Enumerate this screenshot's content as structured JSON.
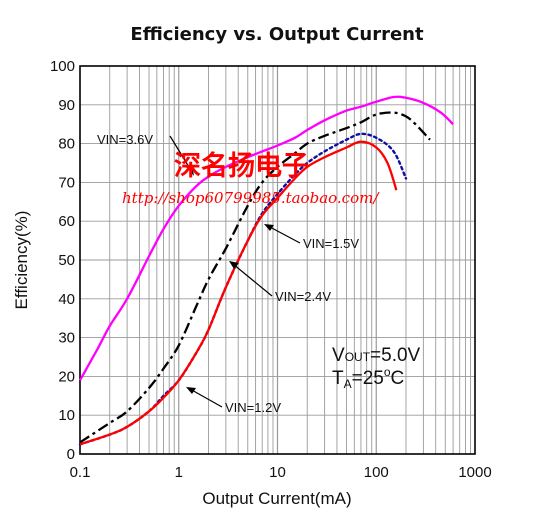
{
  "chart_data": {
    "type": "line",
    "title": "Efficiency vs. Output Current",
    "xlabel": "Output Current(mA)",
    "ylabel": "Efficiency(%)",
    "xscale": "log",
    "xlim": [
      0.1,
      1000
    ],
    "ylim": [
      0,
      100
    ],
    "grid": true,
    "x_tick_labels": [
      "0.1",
      "1",
      "10",
      "100",
      "1000"
    ],
    "y_tick_labels": [
      "0",
      "10",
      "20",
      "30",
      "40",
      "50",
      "60",
      "70",
      "80",
      "90",
      "100"
    ],
    "series": [
      {
        "name": "VIN=3.6V",
        "color": "#ff00ff",
        "style": "solid",
        "x": [
          0.1,
          0.15,
          0.2,
          0.3,
          0.5,
          0.7,
          1,
          1.5,
          2,
          3,
          5,
          7,
          10,
          15,
          20,
          30,
          50,
          70,
          100,
          150,
          200,
          300,
          450,
          600
        ],
        "y": [
          19,
          27,
          33,
          40,
          51,
          58,
          64,
          69,
          71.5,
          74,
          76.5,
          78,
          79.5,
          81.5,
          83.5,
          86,
          88.5,
          89.5,
          90.8,
          92,
          91.8,
          90.5,
          88,
          85
        ]
      },
      {
        "name": "VIN=1.5V",
        "color": "#000000",
        "style": "dashdot",
        "x": [
          0.1,
          0.2,
          0.3,
          0.5,
          0.7,
          1,
          1.5,
          2,
          3,
          5,
          7,
          10,
          15,
          20,
          30,
          50,
          70,
          100,
          150,
          200,
          250,
          350
        ],
        "y": [
          3,
          8,
          11,
          17,
          22,
          28,
          38,
          45,
          53,
          64,
          70,
          74,
          77.5,
          80,
          82,
          84,
          85.5,
          87.5,
          88,
          87,
          85,
          81
        ]
      },
      {
        "name": "VIN=2.4V",
        "color": "#1010a0",
        "style": "dotted",
        "x": [
          0.1,
          0.2,
          0.3,
          0.5,
          0.7,
          1,
          1.5,
          2,
          3,
          5,
          7,
          10,
          15,
          20,
          30,
          50,
          70,
          100,
          150,
          200
        ],
        "y": [
          2.5,
          5,
          7,
          11,
          15,
          19,
          26,
          32,
          43,
          55,
          62,
          67,
          72,
          75,
          78,
          81,
          82.5,
          81.5,
          78,
          71
        ]
      },
      {
        "name": "VIN=1.2V",
        "color": "#ff0000",
        "style": "solid",
        "x": [
          0.1,
          0.2,
          0.3,
          0.5,
          0.7,
          1,
          1.5,
          2,
          3,
          5,
          7,
          10,
          15,
          20,
          30,
          50,
          70,
          100,
          130,
          160
        ],
        "y": [
          2.5,
          5,
          7,
          11,
          14.5,
          19,
          26,
          32,
          43,
          55,
          61.5,
          66,
          71,
          74,
          76.5,
          79,
          80.5,
          79,
          75,
          68
        ]
      }
    ],
    "annotations": [
      {
        "text": "VIN=3.6V"
      },
      {
        "text": "VIN=1.5V"
      },
      {
        "text": "VIN=2.4V"
      },
      {
        "text": "VIN=1.2V"
      }
    ],
    "conditions": {
      "vout": {
        "sym": "V",
        "sub": "OUT",
        "val": "=5.0V"
      },
      "ta": {
        "sym": "T",
        "sub": "A",
        "val": "=25",
        "sup": "o",
        "unit": "C"
      }
    }
  },
  "watermark": {
    "chinese": "深名扬电子",
    "url": "http://shop60799985.taobao.com/"
  }
}
